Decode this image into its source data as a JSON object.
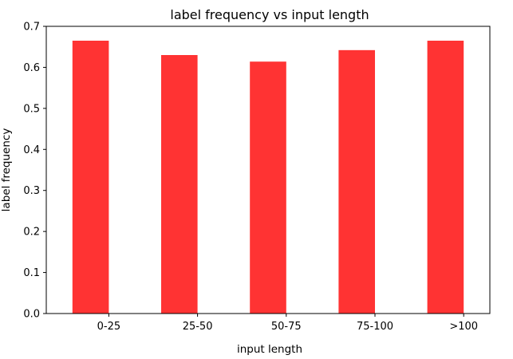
{
  "chart_data": {
    "type": "bar",
    "title": "label frequency vs input length",
    "xlabel": "input length",
    "ylabel": "label frequency",
    "categories": [
      "0-25",
      "25-50",
      "50-75",
      "75-100",
      ">100"
    ],
    "values": [
      0.665,
      0.63,
      0.614,
      0.642,
      0.665
    ],
    "ylim": [
      0,
      0.7
    ],
    "yticks": [
      0.0,
      0.1,
      0.2,
      0.3,
      0.4,
      0.5,
      0.6,
      0.7
    ],
    "ytick_labels": [
      "0.0",
      "0.1",
      "0.2",
      "0.3",
      "0.4",
      "0.5",
      "0.6",
      "0.7"
    ],
    "bar_color": "#ff3333",
    "grid": false,
    "legend": "none"
  }
}
